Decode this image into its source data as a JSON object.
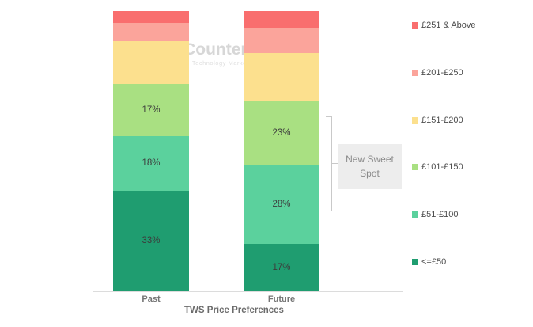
{
  "watermark": {
    "line1": "Counterpoint",
    "line2": "Technology Market Research"
  },
  "annotation": {
    "text": "New Sweet Spot"
  },
  "chart_data": {
    "type": "bar",
    "stacked": true,
    "normalized_height": true,
    "categories": [
      "Past",
      "Future"
    ],
    "series": [
      {
        "name": "<=£50",
        "color": "#1f9d70",
        "values": [
          33,
          17
        ],
        "show_labels": true
      },
      {
        "name": "£51-£100",
        "color": "#5bd19d",
        "values": [
          18,
          28
        ],
        "show_labels": true
      },
      {
        "name": "£101-£150",
        "color": "#a9e082",
        "values": [
          17,
          23
        ],
        "show_labels": true
      },
      {
        "name": "£151-£200",
        "color": "#fce08e",
        "values": [
          14,
          17
        ],
        "show_labels": false
      },
      {
        "name": "£201-£250",
        "color": "#fba49b",
        "values": [
          6,
          9
        ],
        "show_labels": false
      },
      {
        "name": "£251 & Above",
        "color": "#f96e6e",
        "values": [
          4,
          6
        ],
        "show_labels": false
      }
    ],
    "label_suffix": "%",
    "xlabel": "TWS Price Preferences",
    "legend_position": "right",
    "grid": false
  }
}
